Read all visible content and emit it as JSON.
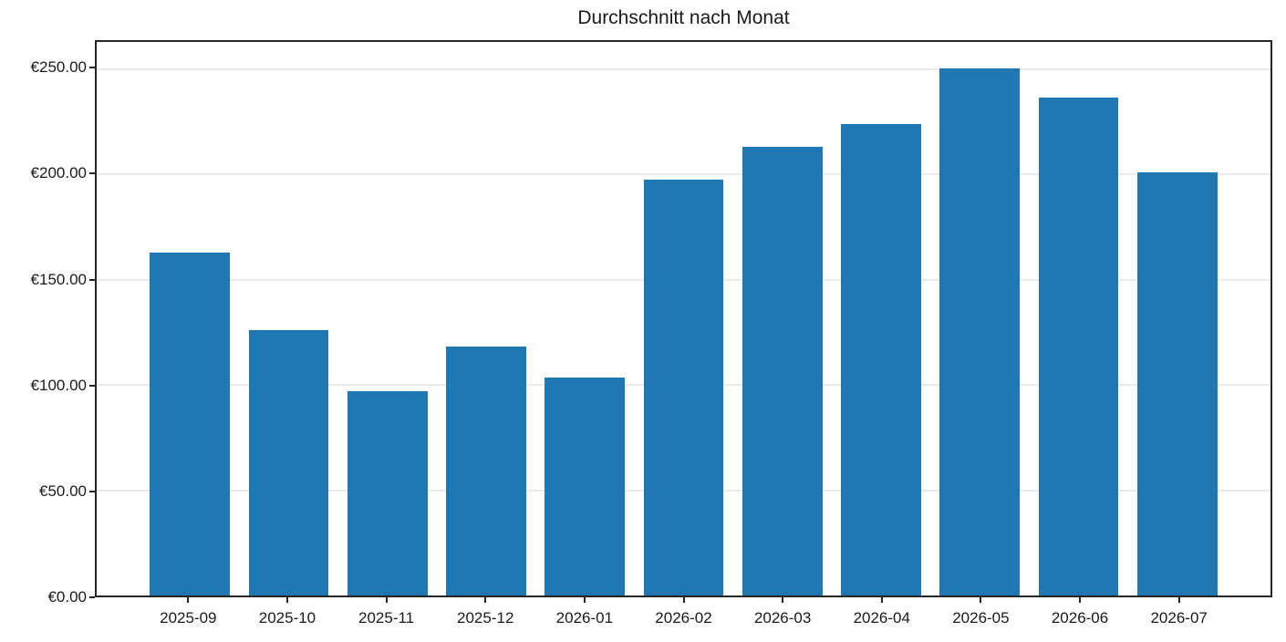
{
  "chart_data": {
    "type": "bar",
    "title": "Durchschnitt nach Monat",
    "categories": [
      "2025-09",
      "2025-10",
      "2025-11",
      "2025-12",
      "2026-01",
      "2026-02",
      "2026-03",
      "2026-04",
      "2026-05",
      "2026-06",
      "2026-07"
    ],
    "values": [
      163.0,
      126.0,
      97.0,
      118.5,
      103.5,
      197.5,
      213.0,
      224.0,
      250.5,
      236.5,
      201.0
    ],
    "xlabel": "",
    "ylabel": "",
    "y_ticks": [
      0,
      50,
      100,
      150,
      200,
      250
    ],
    "y_tick_labels": [
      "€0.00",
      "€50.00",
      "€100.00",
      "€150.00",
      "€200.00",
      "€250.00"
    ],
    "ylim": [
      0,
      263
    ],
    "grid": "horizontal",
    "legend_position": "none",
    "bar_color": "#1f77b4",
    "grid_color": "#ebebeb",
    "spine_color": "#262626",
    "text_color": "#1a1a1a"
  }
}
